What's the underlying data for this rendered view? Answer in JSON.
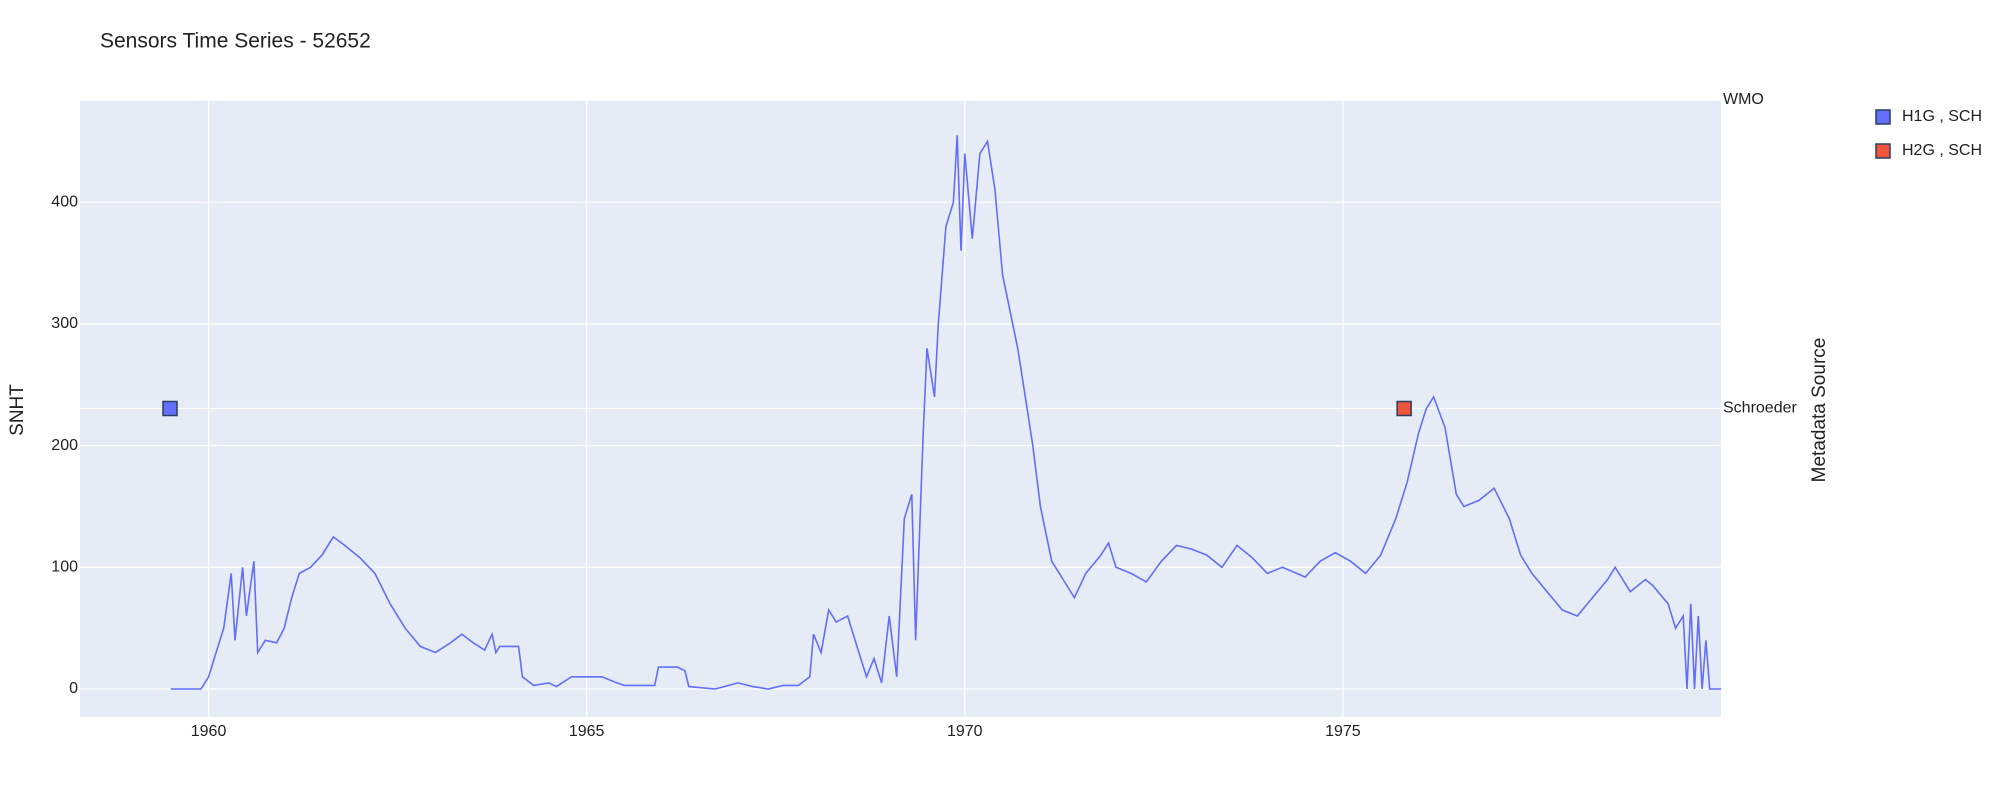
{
  "chart_data": {
    "type": "line",
    "title": "Sensors Time Series - 52652",
    "y_label": "SNHT",
    "y2_label": "Metadata Source",
    "color": "#636efa",
    "grid": true,
    "xlim": [
      1958.3,
      1980.0
    ],
    "xticks": [
      1960,
      1965,
      1970,
      1975
    ],
    "ylim": [
      -23,
      484
    ],
    "yticks": [
      0,
      100,
      200,
      300,
      400
    ],
    "y2categories": [
      "Schroeder",
      "WMO"
    ],
    "x": [
      1959.5,
      1959.9,
      1960.0,
      1960.1,
      1960.2,
      1960.3,
      1960.35,
      1960.45,
      1960.5,
      1960.6,
      1960.65,
      1960.75,
      1960.9,
      1961.0,
      1961.1,
      1961.2,
      1961.35,
      1961.5,
      1961.65,
      1961.8,
      1962.0,
      1962.2,
      1962.4,
      1962.6,
      1962.8,
      1963.0,
      1963.2,
      1963.35,
      1963.5,
      1963.65,
      1963.75,
      1963.8,
      1963.85,
      1964.1,
      1964.15,
      1964.3,
      1964.5,
      1964.6,
      1964.8,
      1965.0,
      1965.2,
      1965.4,
      1965.5,
      1965.9,
      1965.95,
      1966.2,
      1966.3,
      1966.35,
      1966.7,
      1967.0,
      1967.2,
      1967.4,
      1967.6,
      1967.8,
      1967.95,
      1968.0,
      1968.1,
      1968.2,
      1968.3,
      1968.45,
      1968.6,
      1968.7,
      1968.8,
      1968.9,
      1969.0,
      1969.1,
      1969.2,
      1969.3,
      1969.35,
      1969.45,
      1969.5,
      1969.6,
      1969.65,
      1969.75,
      1969.85,
      1969.9,
      1969.95,
      1970.0,
      1970.1,
      1970.2,
      1970.3,
      1970.4,
      1970.5,
      1970.6,
      1970.7,
      1970.8,
      1970.9,
      1971.0,
      1971.15,
      1971.3,
      1971.45,
      1971.6,
      1971.8,
      1971.9,
      1972.0,
      1972.2,
      1972.4,
      1972.6,
      1972.8,
      1973.0,
      1973.2,
      1973.4,
      1973.6,
      1973.8,
      1974.0,
      1974.2,
      1974.5,
      1974.7,
      1974.9,
      1975.1,
      1975.3,
      1975.5,
      1975.7,
      1975.85,
      1976.0,
      1976.1,
      1976.2,
      1976.35,
      1976.5,
      1976.6,
      1976.8,
      1977.0,
      1977.2,
      1977.35,
      1977.5,
      1977.7,
      1977.9,
      1978.1,
      1978.3,
      1978.5,
      1978.6,
      1978.8,
      1979.0,
      1979.1,
      1979.3,
      1979.4,
      1979.5,
      1979.55,
      1979.6,
      1979.65,
      1979.7,
      1979.75,
      1979.8,
      1979.85,
      1980.0
    ],
    "values": [
      0,
      0,
      10,
      30,
      50,
      95,
      40,
      100,
      60,
      105,
      30,
      40,
      38,
      50,
      75,
      95,
      100,
      110,
      125,
      118,
      108,
      95,
      70,
      50,
      35,
      30,
      38,
      45,
      38,
      32,
      45,
      30,
      35,
      35,
      10,
      3,
      5,
      2,
      10,
      10,
      10,
      5,
      3,
      3,
      18,
      18,
      15,
      2,
      0,
      5,
      2,
      0,
      3,
      3,
      10,
      45,
      30,
      65,
      55,
      60,
      30,
      10,
      25,
      5,
      60,
      10,
      140,
      160,
      40,
      210,
      280,
      240,
      300,
      380,
      400,
      455,
      360,
      440,
      370,
      440,
      450,
      410,
      340,
      310,
      280,
      240,
      200,
      150,
      105,
      90,
      75,
      95,
      110,
      120,
      100,
      95,
      88,
      105,
      118,
      115,
      110,
      100,
      118,
      108,
      95,
      100,
      92,
      105,
      112,
      105,
      95,
      110,
      140,
      170,
      210,
      230,
      240,
      215,
      160,
      150,
      155,
      165,
      140,
      110,
      95,
      80,
      65,
      60,
      75,
      90,
      100,
      80,
      90,
      85,
      70,
      50,
      60,
      0,
      70,
      0,
      60,
      0,
      40,
      0,
      0
    ],
    "series": [
      {
        "name": "H1G , SCH",
        "color": "#636efa",
        "axis": "y2",
        "x": [
          1959.49
        ],
        "values": [
          "Schroeder"
        ]
      },
      {
        "name": "H2G , SCH",
        "color": "#ef553b",
        "axis": "y2",
        "x": [
          1975.81
        ],
        "values": [
          "Schroeder"
        ]
      }
    ]
  }
}
